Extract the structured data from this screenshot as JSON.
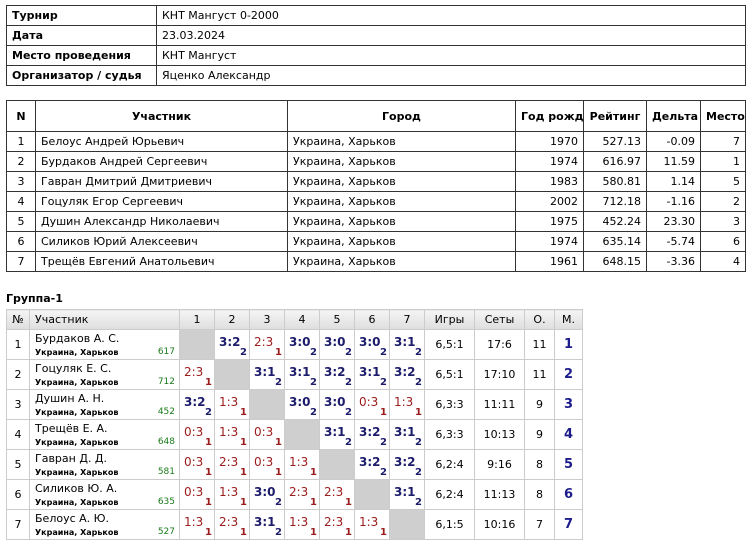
{
  "info": [
    [
      "Турнир",
      "КНТ Мангуст 0-2000"
    ],
    [
      "Дата",
      "23.03.2024"
    ],
    [
      "Место проведения",
      "КНТ Мангуст"
    ],
    [
      "Организатор / судья",
      "Яценко Александр"
    ]
  ],
  "participants": {
    "header": [
      "N",
      "Участник",
      "Город",
      "Год рожд.",
      "Рейтинг",
      "Дельта",
      "Место"
    ],
    "rows": [
      [
        "1",
        "Белоус Андрей Юрьевич",
        "Украина, Харьков",
        "1970",
        "527.13",
        "-0.09",
        "7"
      ],
      [
        "2",
        "Бурдаков Андрей Сергеевич",
        "Украина, Харьков",
        "1974",
        "616.97",
        "11.59",
        "1"
      ],
      [
        "3",
        "Гавран Дмитрий Дмитриевич",
        "Украина, Харьков",
        "1983",
        "580.81",
        "1.14",
        "5"
      ],
      [
        "4",
        "Гоцуляк Егор Сергеевич",
        "Украина, Харьков",
        "2002",
        "712.18",
        "-1.16",
        "2"
      ],
      [
        "5",
        "Душин Александр Николаевич",
        "Украина, Харьков",
        "1975",
        "452.24",
        "23.30",
        "3"
      ],
      [
        "6",
        "Силиков Юрий Алексеевич",
        "Украина, Харьков",
        "1974",
        "635.14",
        "-5.74",
        "6"
      ],
      [
        "7",
        "Трещёв Евгений Анатольевич",
        "Украина, Харьков",
        "1961",
        "648.15",
        "-3.36",
        "4"
      ]
    ]
  },
  "group": {
    "title": "Группа-1",
    "header": [
      "№",
      "Участник",
      "1",
      "2",
      "3",
      "4",
      "5",
      "6",
      "7",
      "Игры",
      "Сеты",
      "О.",
      "М."
    ],
    "rows": [
      {
        "n": "1",
        "name": "Бурдаков А. С.",
        "city": "Украина, Харьков",
        "rating": "617",
        "results": [
          null,
          {
            "score": "3:2",
            "points": 2
          },
          {
            "score": "2:3",
            "points": 1
          },
          {
            "score": "3:0",
            "points": 2
          },
          {
            "score": "3:0",
            "points": 2
          },
          {
            "score": "3:0",
            "points": 2
          },
          {
            "score": "3:1",
            "points": 2
          }
        ],
        "games": "6,5:1",
        "sets": "17:6",
        "total": "11",
        "place": "1"
      },
      {
        "n": "2",
        "name": "Гоцуляк Е. С.",
        "city": "Украина, Харьков",
        "rating": "712",
        "results": [
          {
            "score": "2:3",
            "points": 1
          },
          null,
          {
            "score": "3:1",
            "points": 2
          },
          {
            "score": "3:1",
            "points": 2
          },
          {
            "score": "3:2",
            "points": 2
          },
          {
            "score": "3:1",
            "points": 2
          },
          {
            "score": "3:2",
            "points": 2
          }
        ],
        "games": "6,5:1",
        "sets": "17:10",
        "total": "11",
        "place": "2"
      },
      {
        "n": "3",
        "name": "Душин А. Н.",
        "city": "Украина, Харьков",
        "rating": "452",
        "results": [
          {
            "score": "3:2",
            "points": 2
          },
          {
            "score": "1:3",
            "points": 1
          },
          null,
          {
            "score": "3:0",
            "points": 2
          },
          {
            "score": "3:0",
            "points": 2
          },
          {
            "score": "0:3",
            "points": 1
          },
          {
            "score": "1:3",
            "points": 1
          }
        ],
        "games": "6,3:3",
        "sets": "11:11",
        "total": "9",
        "place": "3"
      },
      {
        "n": "4",
        "name": "Трещёв Е. А.",
        "city": "Украина, Харьков",
        "rating": "648",
        "results": [
          {
            "score": "0:3",
            "points": 1
          },
          {
            "score": "1:3",
            "points": 1
          },
          {
            "score": "0:3",
            "points": 1
          },
          null,
          {
            "score": "3:1",
            "points": 2
          },
          {
            "score": "3:2",
            "points": 2
          },
          {
            "score": "3:1",
            "points": 2
          }
        ],
        "games": "6,3:3",
        "sets": "10:13",
        "total": "9",
        "place": "4"
      },
      {
        "n": "5",
        "name": "Гавран Д. Д.",
        "city": "Украина, Харьков",
        "rating": "581",
        "results": [
          {
            "score": "0:3",
            "points": 1
          },
          {
            "score": "2:3",
            "points": 1
          },
          {
            "score": "0:3",
            "points": 1
          },
          {
            "score": "1:3",
            "points": 1
          },
          null,
          {
            "score": "3:2",
            "points": 2
          },
          {
            "score": "3:2",
            "points": 2
          }
        ],
        "games": "6,2:4",
        "sets": "9:16",
        "total": "8",
        "place": "5"
      },
      {
        "n": "6",
        "name": "Силиков Ю. А.",
        "city": "Украина, Харьков",
        "rating": "635",
        "results": [
          {
            "score": "0:3",
            "points": 1
          },
          {
            "score": "1:3",
            "points": 1
          },
          {
            "score": "3:0",
            "points": 2
          },
          {
            "score": "2:3",
            "points": 1
          },
          {
            "score": "2:3",
            "points": 1
          },
          null,
          {
            "score": "3:1",
            "points": 2
          }
        ],
        "games": "6,2:4",
        "sets": "11:13",
        "total": "8",
        "place": "6"
      },
      {
        "n": "7",
        "name": "Белоус А. Ю.",
        "city": "Украина, Харьков",
        "rating": "527",
        "results": [
          {
            "score": "1:3",
            "points": 1
          },
          {
            "score": "2:3",
            "points": 1
          },
          {
            "score": "3:1",
            "points": 2
          },
          {
            "score": "1:3",
            "points": 1
          },
          {
            "score": "2:3",
            "points": 1
          },
          {
            "score": "1:3",
            "points": 1
          },
          null
        ],
        "games": "6,1:5",
        "sets": "10:16",
        "total": "7",
        "place": "7"
      }
    ]
  }
}
